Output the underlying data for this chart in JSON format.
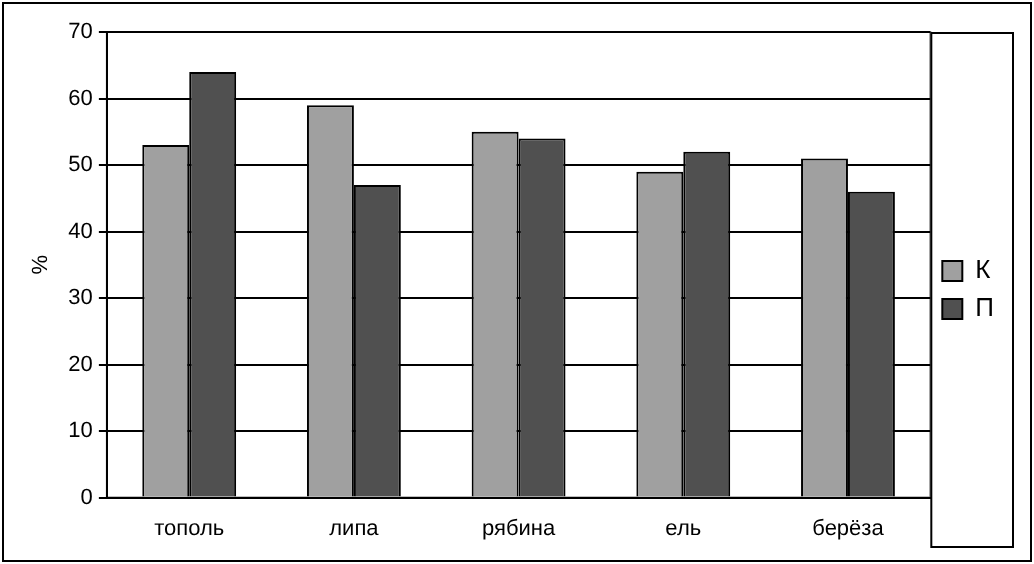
{
  "chart_data": {
    "type": "bar",
    "ylabel": "%",
    "categories": [
      "тополь",
      "липа",
      "рябина",
      "ель",
      "берёза"
    ],
    "series": [
      {
        "name": "К",
        "color": "#a0a0a0",
        "values": [
          53,
          59,
          55,
          49,
          51
        ]
      },
      {
        "name": "П",
        "color": "#505050",
        "values": [
          64,
          47,
          54,
          52,
          46
        ]
      }
    ],
    "ylim": [
      0,
      70
    ],
    "yticks": [
      0,
      10,
      20,
      30,
      40,
      50,
      60,
      70
    ],
    "grid": "y",
    "legend": "right"
  }
}
